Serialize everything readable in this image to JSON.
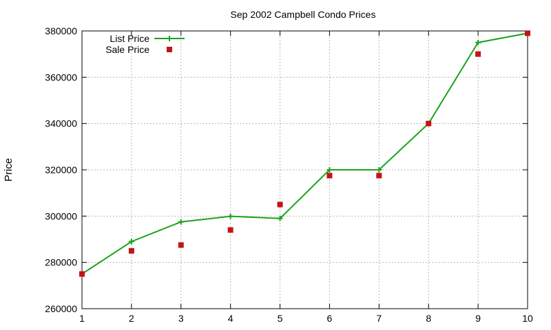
{
  "chart_data": {
    "type": "line",
    "title": "Sep 2002 Campbell Condo Prices",
    "xlabel": "",
    "ylabel": "Price",
    "x": [
      1,
      2,
      3,
      4,
      5,
      6,
      7,
      8,
      9,
      10
    ],
    "xlim": [
      1,
      10
    ],
    "ylim": [
      260000,
      380000
    ],
    "x_ticks": [
      1,
      2,
      3,
      4,
      5,
      6,
      7,
      8,
      9,
      10
    ],
    "y_ticks": [
      260000,
      280000,
      300000,
      320000,
      340000,
      360000,
      380000
    ],
    "grid": true,
    "legend_position": "top-left",
    "series": [
      {
        "name": "List Price",
        "style": "line-with-plus-markers",
        "color": "#1aa31a",
        "values": [
          275000,
          289000,
          297500,
          299900,
          299000,
          320000,
          320000,
          340000,
          375000,
          379000
        ]
      },
      {
        "name": "Sale Price",
        "style": "square-markers",
        "color": "#c41414",
        "values": [
          275000,
          285000,
          287500,
          294000,
          305000,
          317500,
          317500,
          340000,
          370000,
          379000
        ]
      }
    ]
  }
}
